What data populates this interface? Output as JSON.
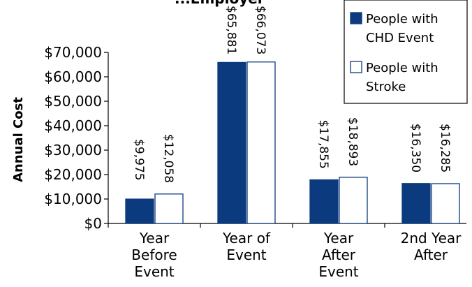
{
  "chart_data": {
    "type": "bar",
    "title": "...Employer",
    "ylabel": "Annual Cost",
    "xlabel": "",
    "ylim": [
      0,
      70000
    ],
    "yticks": [
      0,
      10000,
      20000,
      30000,
      40000,
      50000,
      60000,
      70000
    ],
    "ytick_labels": [
      "$0",
      "$10,000",
      "$20,000",
      "$30,000",
      "$40,000",
      "$50,000",
      "$60,000",
      "$70,000"
    ],
    "categories": [
      [
        "Year",
        "Before",
        "Event"
      ],
      [
        "Year of",
        "Event"
      ],
      [
        "Year",
        "After",
        "Event"
      ],
      [
        "2nd Year",
        "After"
      ]
    ],
    "series": [
      {
        "name": "People with CHD Event",
        "legend_lines": [
          "People with",
          "CHD Event"
        ],
        "color": "#0b3a7e",
        "values": [
          9975,
          65881,
          17855,
          16350
        ],
        "labels": [
          "$9,975",
          "$65,881",
          "$17,855",
          "$16,350"
        ]
      },
      {
        "name": "People with Stroke",
        "legend_lines": [
          "People with",
          "Stroke"
        ],
        "color": "#ffffff",
        "values": [
          12058,
          66073,
          18893,
          16285
        ],
        "labels": [
          "$12,058",
          "$66,073",
          "$18,893",
          "$16,285"
        ]
      }
    ],
    "grid": false,
    "legend_position": "top-right",
    "colors": {
      "primary": "#0b3a7e",
      "outline": "#0b3a7e",
      "axis": "#000000"
    }
  }
}
